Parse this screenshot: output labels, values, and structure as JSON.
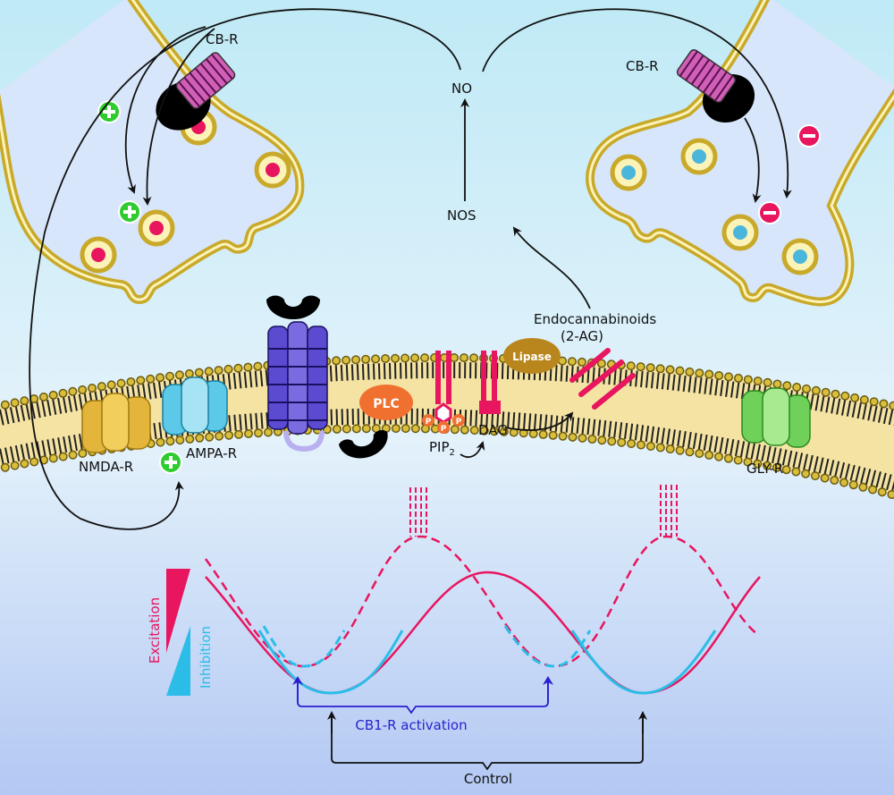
{
  "labels": {
    "cb_r_left": "CB-R",
    "cb_r_right": "CB-R",
    "no": "NO",
    "nos": "NOS",
    "endocannabinoids": "Endocannabinoids",
    "two_ag": "(2-AG)",
    "lipase": "Lipase",
    "plc": "PLC",
    "pip2": "PIP",
    "pip2_sub": "2",
    "dag": "DAG",
    "p": "P",
    "nmda_r": "NMDA-R",
    "ampa_r": "AMPA-R",
    "gly_r": "GLY-R",
    "excitation": "Excitation",
    "inhibition": "Inhibition",
    "cb1_activation": "CB1-R activation",
    "control": "Control"
  },
  "colors": {
    "excitation": "#e8155f",
    "inhibition": "#2bbde8",
    "cb1_activation": "#2a1fd0",
    "membrane": "#c9a92a",
    "plus": "#2ecc2e",
    "minus": "#e8155f"
  },
  "icons": {
    "plus": "plus-circle-icon",
    "minus": "minus-circle-icon"
  }
}
